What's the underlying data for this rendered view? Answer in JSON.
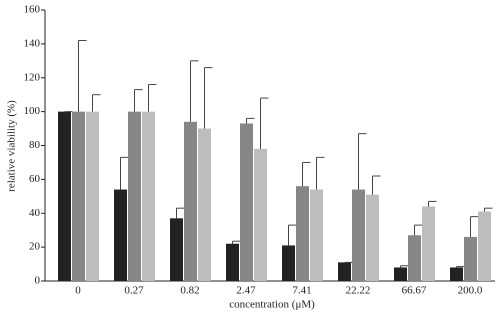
{
  "chart_data": {
    "type": "bar",
    "x_label": "concentration (μM)",
    "y_label": "relative viability (%)",
    "categories": [
      "0",
      "0.27",
      "0.82",
      "2.47",
      "7.41",
      "22.22",
      "66.67",
      "200.0"
    ],
    "series": [
      {
        "color": "#222222",
        "values": [
          100,
          54,
          37,
          22,
          21,
          11,
          8,
          8
        ],
        "errors": [
          0,
          19,
          6,
          1.5,
          12,
          0,
          1,
          0.5
        ]
      },
      {
        "color": "#868686",
        "values": [
          100,
          100,
          94,
          93,
          56,
          54,
          27,
          26
        ],
        "errors": [
          42,
          13,
          36,
          3,
          14,
          33,
          6,
          12
        ]
      },
      {
        "color": "#bdbdbd",
        "values": [
          100,
          100,
          90,
          78,
          54,
          51,
          44,
          41
        ],
        "errors": [
          10,
          16,
          36,
          30,
          19,
          11,
          3,
          2
        ]
      }
    ],
    "ylim": [
      0,
      160
    ],
    "yticks": [
      0,
      20,
      40,
      60,
      80,
      100,
      120,
      140,
      160
    ]
  }
}
